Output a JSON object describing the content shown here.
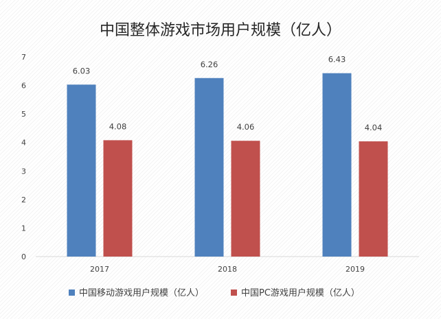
{
  "chart_data": {
    "type": "bar",
    "title": "中国整体游戏市场用户规模（亿人）",
    "categories": [
      "2017",
      "2018",
      "2019"
    ],
    "series": [
      {
        "name": "中国移动游戏用户规模（亿人）",
        "values": [
          6.03,
          6.26,
          6.43
        ],
        "color": "#4F81BD"
      },
      {
        "name": "中国PC游戏用户规模（亿人）",
        "values": [
          4.08,
          4.06,
          4.04
        ],
        "color": "#C0504D"
      }
    ],
    "ylim": [
      0,
      7
    ],
    "yticks": [
      0,
      1,
      2,
      3,
      4,
      5,
      6,
      7
    ],
    "xlabel": "",
    "ylabel": "",
    "grid": false,
    "legend_position": "bottom",
    "data_labels": true
  }
}
